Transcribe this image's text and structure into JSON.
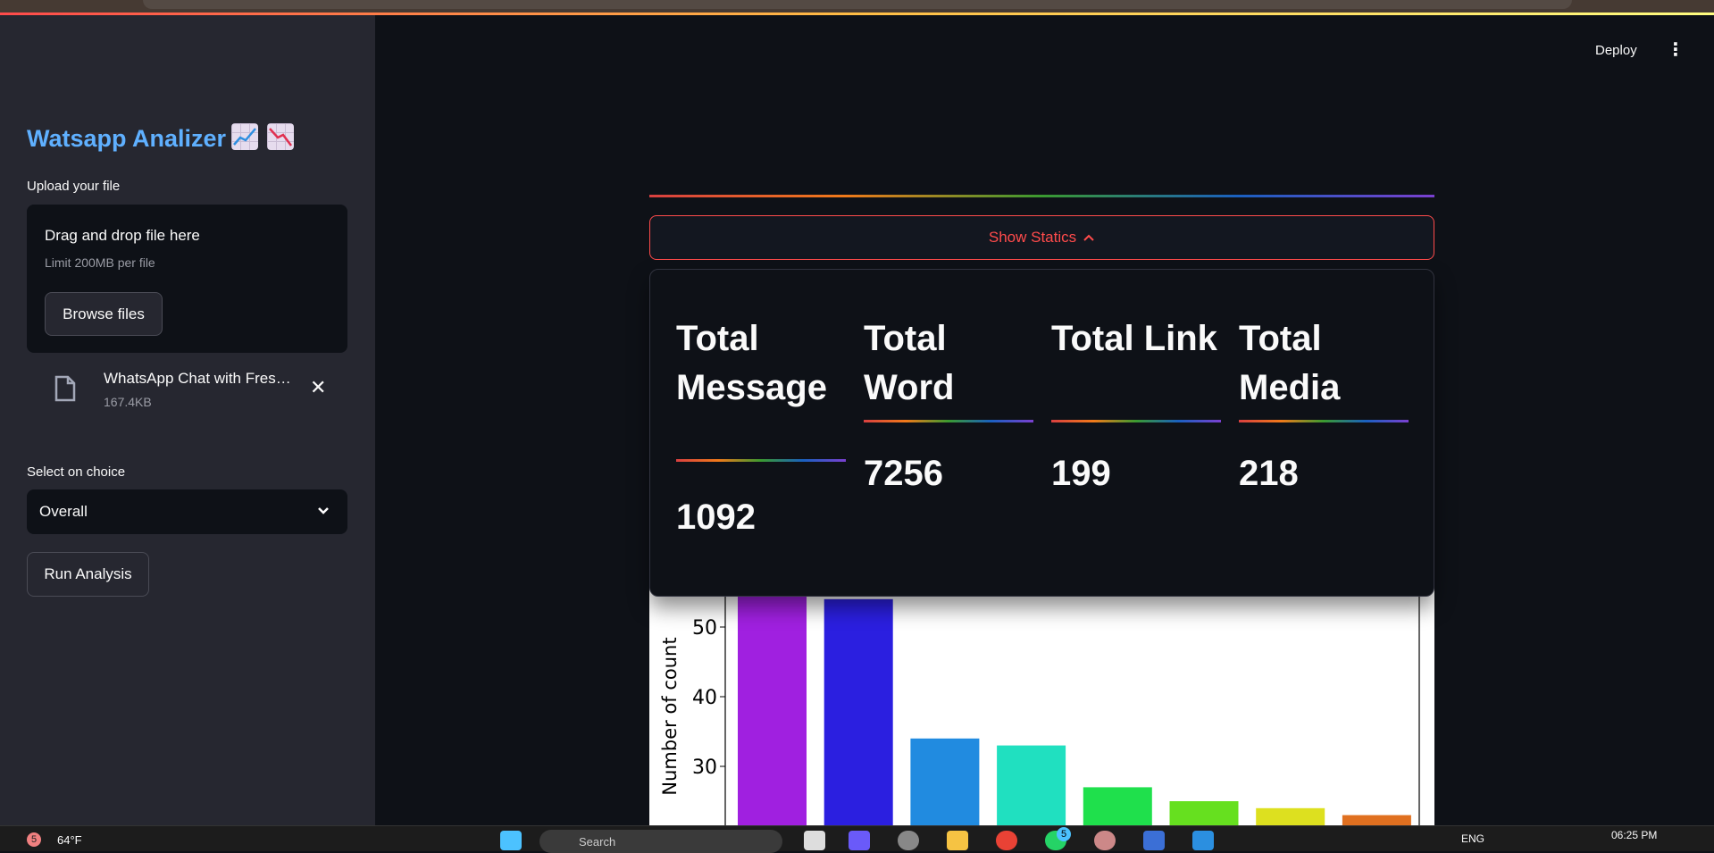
{
  "header": {
    "deploy_label": "Deploy",
    "menu_icon": "more-vertical-icon"
  },
  "sidebar": {
    "title": "Watsapp Analizer",
    "title_emojis": [
      "chart-increasing-icon",
      "chart-decreasing-icon"
    ],
    "upload_label": "Upload your file",
    "dropzone": {
      "title": "Drag and drop file here",
      "limit": "Limit 200MB per file",
      "browse_label": "Browse files"
    },
    "file": {
      "name": "WhatsApp Chat with Fres…",
      "size": "167.4KB"
    },
    "select_label": "Select on choice",
    "select_value": "Overall",
    "run_label": "Run Analysis"
  },
  "main": {
    "expander_label": "Show Statics",
    "stats": [
      {
        "label": "Total Message",
        "value": "1092"
      },
      {
        "label": "Total Word",
        "value": "7256"
      },
      {
        "label": "Total Link",
        "value": "199"
      },
      {
        "label": "Total Media",
        "value": "218"
      }
    ]
  },
  "chart_data": {
    "type": "bar",
    "ylabel": "Number of count",
    "yticks": [
      30,
      40,
      50
    ],
    "values": [
      55,
      54,
      34,
      33,
      27,
      25,
      24,
      23
    ],
    "colors": [
      "#a020e0",
      "#2b1fe0",
      "#218be0",
      "#20e0c0",
      "#1fe04c",
      "#66e01f",
      "#dde01f",
      "#e07020"
    ]
  },
  "taskbar": {
    "weather": "64°F",
    "weather_badge": "5",
    "search_placeholder": "Search",
    "language": "ENG",
    "time": "06:25 PM",
    "whatsapp_badge": "5"
  },
  "colors": {
    "accent": "#ff4b4b",
    "title": "#5fb0ff",
    "sidebar_bg": "#262730",
    "main_bg": "#0e1117"
  }
}
